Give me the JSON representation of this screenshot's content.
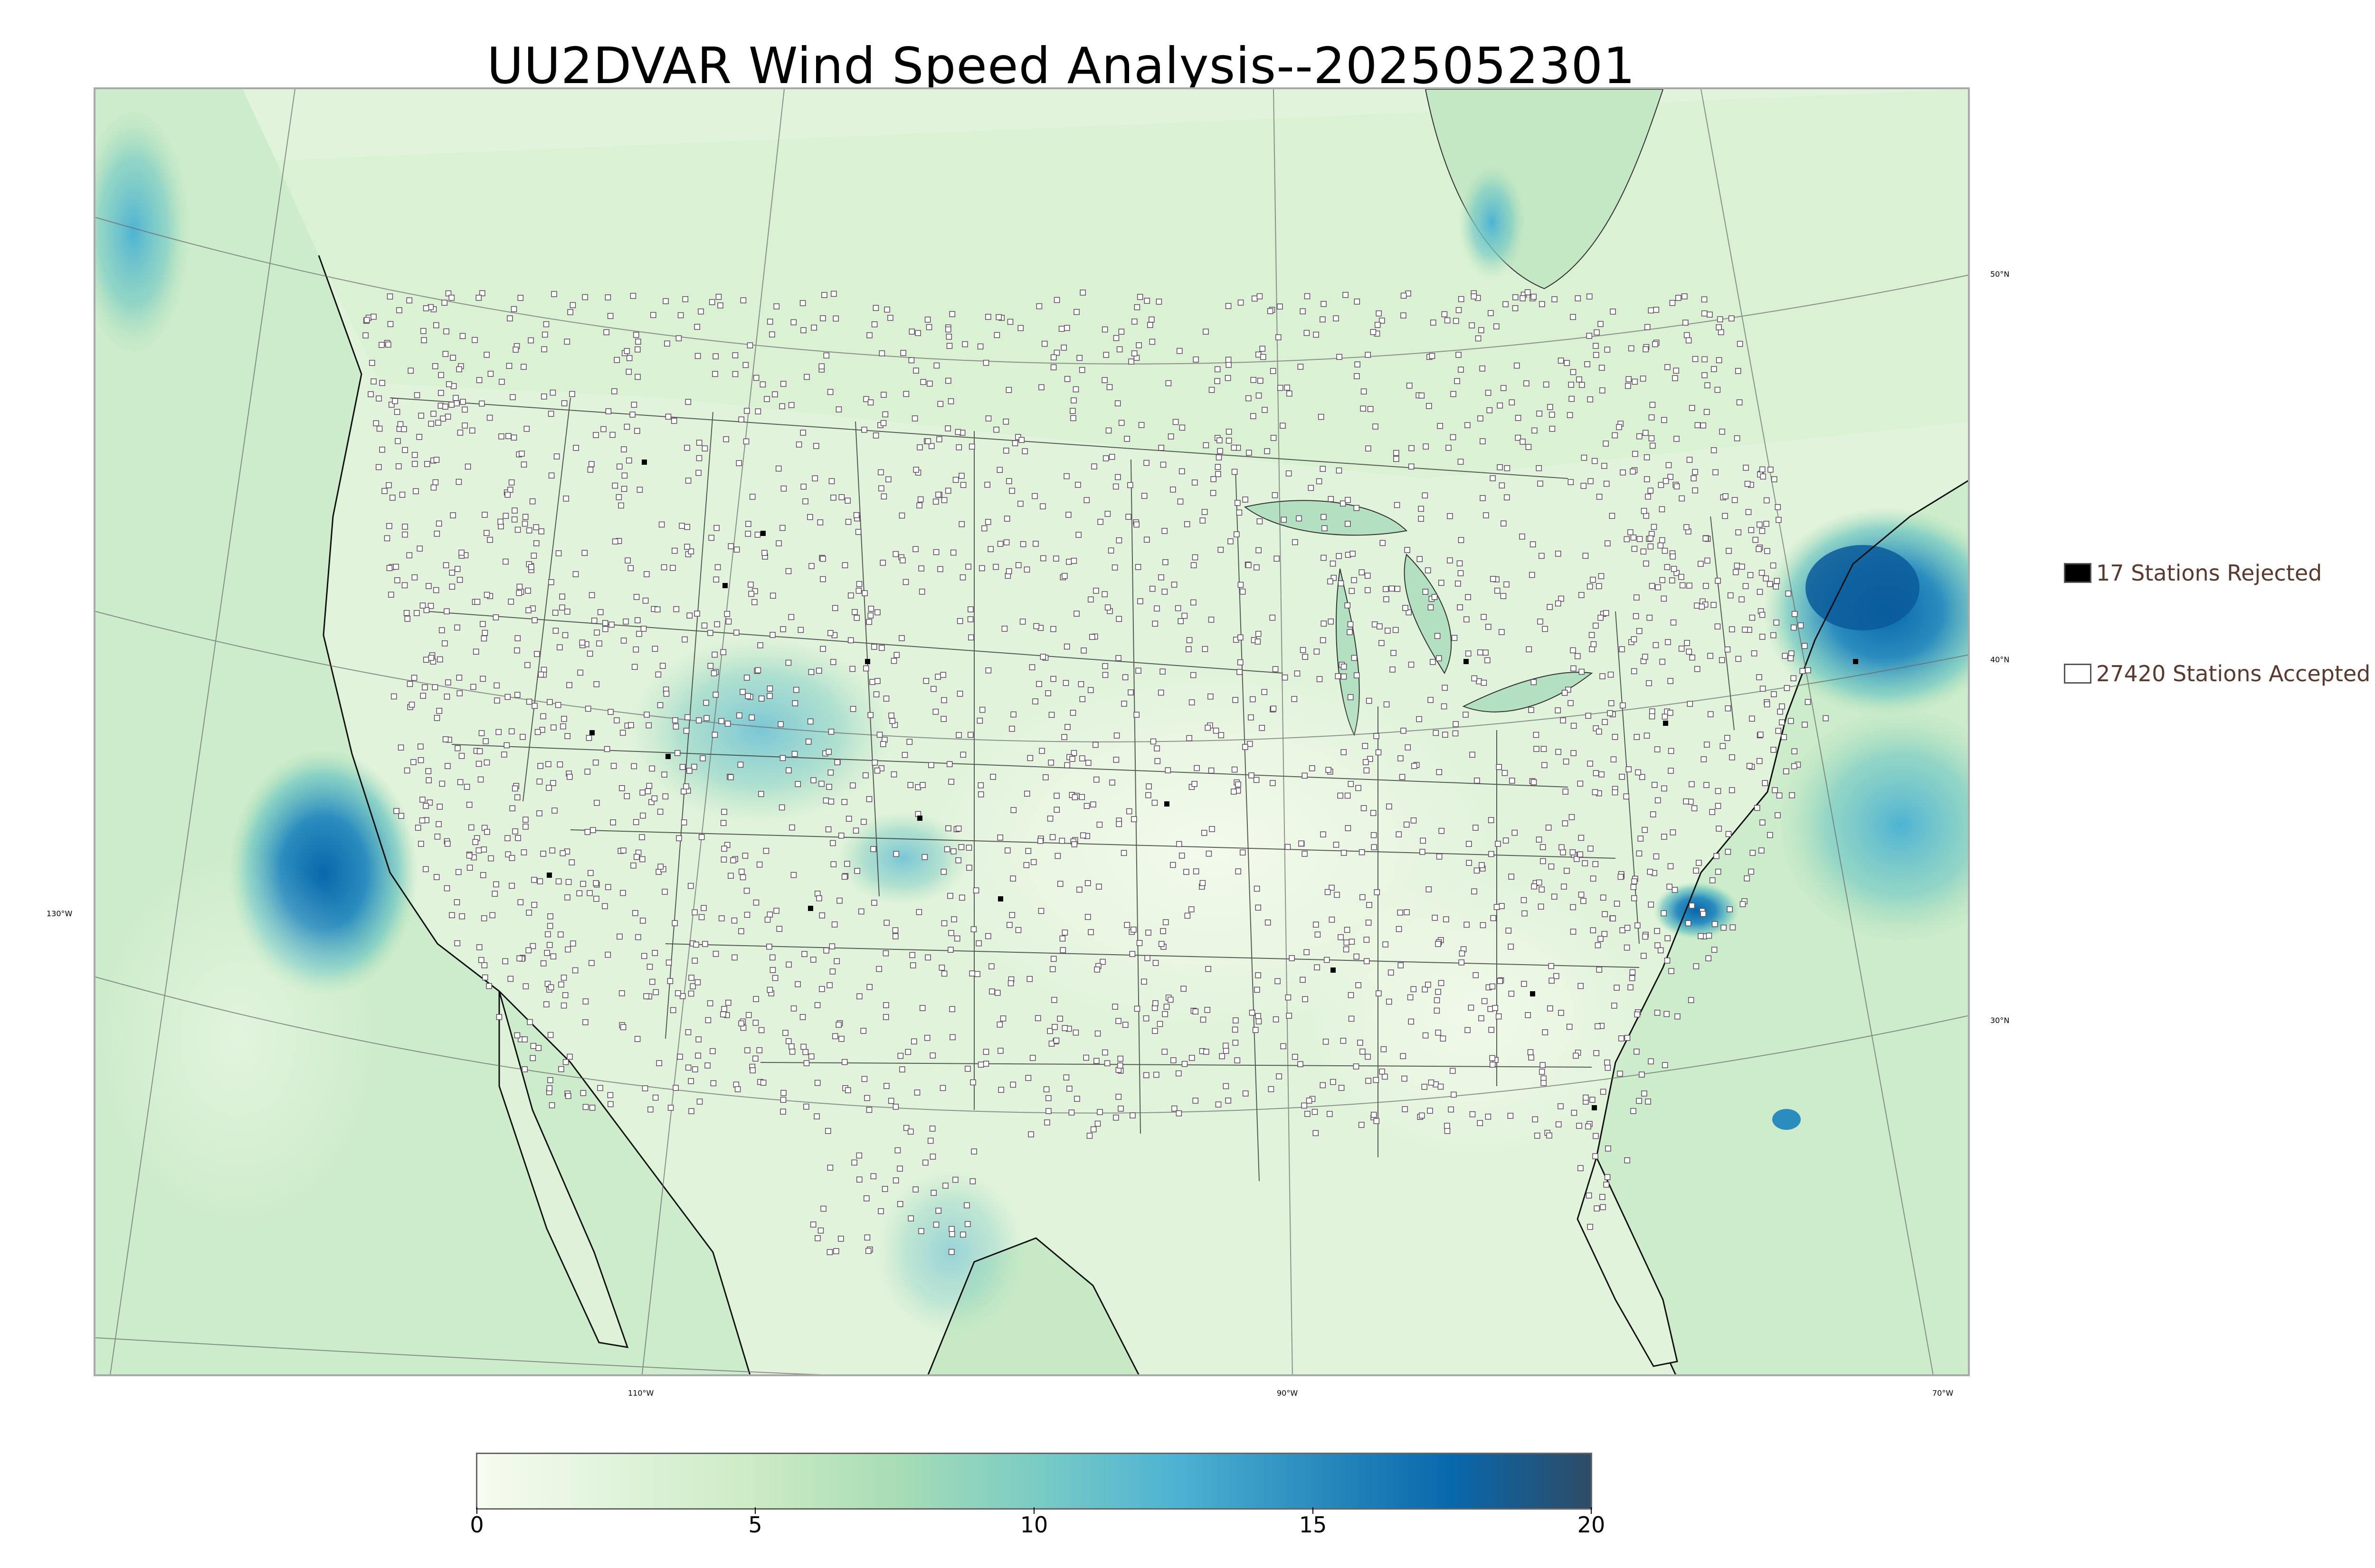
{
  "title": "UU2DVAR Wind Speed Analysis--2025052301",
  "lat_labels": [
    "50°N",
    "40°N",
    "30°N"
  ],
  "lon_labels": [
    "130°W",
    "110°W",
    "90°W",
    "70°W"
  ],
  "legend": {
    "rejected": {
      "label": "17 Stations Rejected",
      "color": "#000000"
    },
    "accepted": {
      "label": "27420 Stations Accepted",
      "color": "#ffffff"
    }
  },
  "colorbar": {
    "ticks": [
      "0",
      "5",
      "10",
      "15",
      "20"
    ],
    "min": 0,
    "max": 20,
    "colors": [
      "#f7fcf0",
      "#e0f3db",
      "#ccebc5",
      "#a8ddb5",
      "#7bccc4",
      "#4eb3d3",
      "#2b8cbe",
      "#0868ac",
      "#2f4b66"
    ]
  },
  "map": {
    "rejected_count": 17,
    "accepted_count": 27420,
    "colors": {
      "land_base": "#e6f5df",
      "ocean_base": "#cdeccb",
      "station_fill": "#ffffff",
      "station_stroke": "#5a4a5a",
      "boundary": "#333333",
      "graticule": "#666666"
    }
  }
}
